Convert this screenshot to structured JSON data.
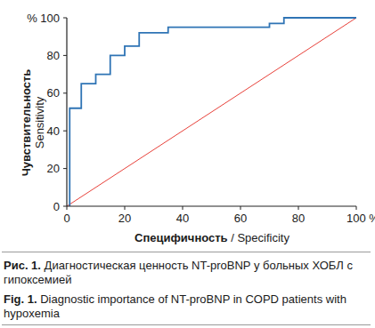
{
  "chart_data": {
    "type": "line",
    "xlabel": [
      "Специфичность",
      " / Specificity"
    ],
    "ylabel": [
      "Чувствительность",
      "Sensitivity"
    ],
    "caption": [
      "Рис. 1.",
      "Диагностическая ценность NT-proBNP у больных ХОБЛ с гипоксемией"
    ],
    "caption_en": [
      "Fig. 1.",
      "Diagnostic importance of NT-proBNP in COPD patients with hypoxemia"
    ],
    "xlim": [
      0,
      100
    ],
    "ylim": [
      0,
      100
    ],
    "xticks": [
      0,
      20,
      40,
      60,
      80,
      {
        "value": 100,
        "label": "100 %"
      }
    ],
    "yticks": [
      0,
      20,
      40,
      60,
      80,
      {
        "value": 100,
        "label": "% 100"
      }
    ],
    "grid": false,
    "series": [
      {
        "color": "#2f74b5",
        "line_style": "solid",
        "x": [
          1,
          1,
          5,
          5,
          10,
          10,
          15,
          15,
          20,
          20,
          25,
          25,
          35,
          35,
          70,
          70,
          75,
          75,
          100
        ],
        "values": [
          0,
          52,
          52,
          65,
          65,
          70,
          70,
          80,
          80,
          85,
          85,
          92,
          92,
          95,
          95,
          97,
          97,
          100,
          100
        ]
      },
      {
        "color": "#e8413a",
        "line_style": "solid",
        "x": [
          0,
          100
        ],
        "values": [
          0,
          100
        ]
      }
    ]
  }
}
